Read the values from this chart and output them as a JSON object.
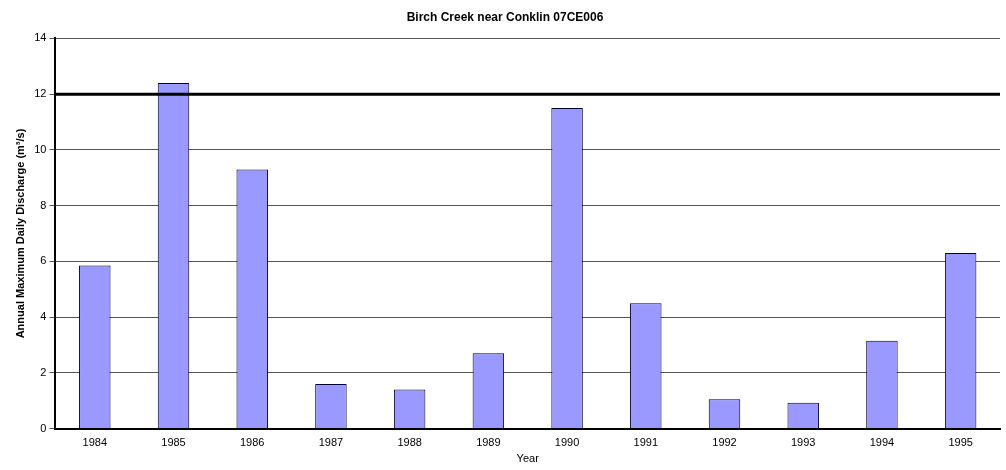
{
  "chart_data": {
    "type": "bar",
    "title": "Birch Creek near Conklin 07CE006",
    "xlabel": "Year",
    "ylabel": "Annual Maximum Daily Discharge (m³/s)",
    "categories": [
      "1984",
      "1985",
      "1986",
      "1987",
      "1988",
      "1989",
      "1990",
      "1991",
      "1992",
      "1993",
      "1994",
      "1995"
    ],
    "values": [
      5.85,
      12.4,
      9.3,
      1.6,
      1.4,
      2.7,
      11.5,
      4.5,
      1.05,
      0.93,
      3.15,
      6.3
    ],
    "color": "#9999ff",
    "ylim": [
      0,
      14
    ],
    "yticks": [
      0,
      2,
      4,
      6,
      8,
      10,
      12,
      14
    ],
    "grid": "y",
    "legend": false,
    "ref_lines": [
      {
        "axis": "y",
        "value": 12,
        "color": "#000000"
      }
    ]
  }
}
